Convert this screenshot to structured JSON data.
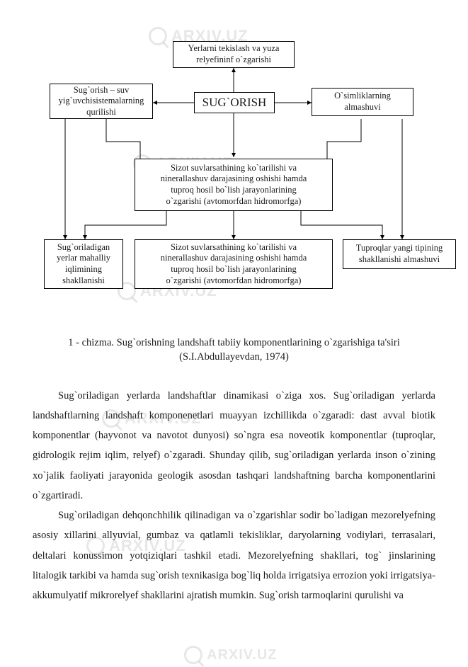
{
  "watermark_text": "ARXIV.UZ",
  "diagram": {
    "top_box": "Yerlarni tekislash va yuza\nrelyefininf o`zgarishi",
    "left_box": "Sug`orish – suv\nyig`uvchisistemalarning\nqurilishi",
    "center_box": "SUG`ORISH",
    "right_box": "O`simliklarning\nalmashuvi",
    "mid_box": "Sizot suvlarsathining ko`tarilishi va\nninerallashuv darajasining oshishi hamda\ntuproq hosil bo`lish jarayonlarining\no`zgarishi (avtomorfdan hidromorfga)",
    "bottom_left": "Sug`oriladigan\nyerlar mahalliy\niqlimining\nshakllanishi",
    "bottom_center": "Sizot suvlarsathining ko`tarilishi va\nninerallashuv darajasining oshishi hamda\ntuproq hosil bo`lish jarayonlarining\no`zgarishi (avtomorfdan hidromorfga)",
    "bottom_right": "Tuproqlar yangi tipining\nshakllanishi almashuvi"
  },
  "caption": "1 - chizma. Sug`orishning landshaft tabiiy komponentlarining o`zgarishiga ta'siri (S.I.Abdullayevdan, 1974)",
  "para1": "Sug`oriladigan yerlarda landshaftlar dinamikasi o`ziga xos. Sug`oriladigan yerlarda landshaftlarning landshaft komponenetlari muayyan izchillikda o`zgaradi: dast avval biotik komponentlar (hayvonot va navotot dunyosi) so`ngra esa noveotik komponentlar (tuproqlar, gidrologik rejim iqlim, relyef) o`zgaradi. Shunday qilib, sug`oriladigan yerlarda inson o`zining xo`jalik faoliyati jarayonida geologik asosdan tashqari landshaftning barcha komponentlarini o`zgartiradi.",
  "para2": "Sug`oriladigan dehqonchhilik qilinadigan va o`zgarishlar sodir bo`ladigan mezorelyefning asosiy xillarini allyuvial, gumbaz va qatlamli tekisliklar, daryolarning vodiylari, terrasalari, deltalari konussimon yotqiziqlari tashkil etadi. Mezorelyefning shakllari, tog` jinslarining litalogik tarkibi va hamda sug`orish texnikasiga bog`liq holda irrigatsiya errozion yoki irrigatsiya-akkumulyatif mikrorelyef shakllarini ajratish mumkin. Sug`orish tarmoqlarini qurulishi va",
  "style": {
    "border_color": "#000000",
    "background": "#ffffff",
    "font_family": "Times New Roman",
    "body_font_size_pt": 11,
    "center_font_size_pt": 13,
    "watermark_color": "rgba(120,120,120,0.18)"
  }
}
